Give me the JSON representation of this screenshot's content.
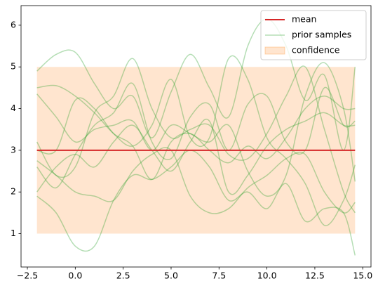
{
  "chart_data": {
    "type": "line",
    "xlim": [
      -2.83,
      15.43
    ],
    "ylim": [
      0.2,
      6.47
    ],
    "xticks": [
      {
        "value": -2.5,
        "label": "−2.5"
      },
      {
        "value": 0,
        "label": "0.0"
      },
      {
        "value": 2.5,
        "label": "2.5"
      },
      {
        "value": 5,
        "label": "5.0"
      },
      {
        "value": 7.5,
        "label": "7.5"
      },
      {
        "value": 10,
        "label": "10.0"
      },
      {
        "value": 12.5,
        "label": "12.5"
      },
      {
        "value": 15,
        "label": "15.0"
      }
    ],
    "yticks": [
      1,
      2,
      3,
      4,
      5,
      6
    ],
    "legend": "upper right",
    "band": {
      "name": "confidence",
      "color": "#ff7f0e",
      "x": [
        -2,
        14.6
      ],
      "lower": [
        1,
        1
      ],
      "upper": [
        5,
        5
      ]
    },
    "samples": {
      "name": "prior samples",
      "color": "#2ca02c",
      "x": [
        -2,
        -1,
        0,
        1,
        2,
        3,
        4,
        5,
        6,
        7,
        8,
        9,
        10,
        11,
        12,
        13,
        14,
        14.6
      ],
      "series": [
        [
          4.9,
          5.3,
          5.35,
          4.6,
          4.0,
          4.3,
          3.3,
          4.4,
          5.3,
          4.5,
          3.8,
          5.5,
          6.15,
          5.5,
          4.2,
          4.8,
          3.0,
          5.0
        ],
        [
          1.9,
          1.5,
          0.7,
          0.7,
          1.8,
          2.4,
          2.3,
          2.6,
          3.0,
          2.6,
          1.8,
          2.0,
          1.6,
          2.2,
          1.3,
          1.6,
          1.5,
          0.48
        ],
        [
          4.5,
          4.55,
          4.3,
          3.9,
          3.4,
          3.1,
          2.3,
          3.2,
          3.4,
          3.0,
          2.7,
          3.1,
          2.8,
          3.3,
          4.0,
          4.3,
          4.0,
          4.0
        ],
        [
          3.2,
          2.4,
          2.6,
          3.9,
          4.3,
          5.2,
          4.0,
          3.3,
          3.5,
          3.6,
          2.9,
          2.8,
          3.4,
          4.3,
          5.0,
          3.5,
          2.0,
          1.5
        ],
        [
          2.6,
          2.1,
          2.9,
          3.6,
          3.9,
          4.6,
          3.2,
          2.8,
          3.8,
          4.1,
          3.0,
          4.1,
          4.3,
          3.2,
          3.0,
          4.5,
          3.6,
          3.7
        ],
        [
          2.75,
          2.4,
          2.0,
          1.9,
          1.8,
          2.5,
          2.9,
          3.0,
          1.9,
          1.5,
          1.6,
          2.1,
          2.4,
          2.8,
          2.9,
          2.0,
          1.5,
          1.75
        ],
        [
          4.35,
          3.8,
          3.2,
          3.5,
          3.6,
          3.7,
          3.0,
          3.6,
          3.4,
          3.2,
          3.6,
          2.5,
          1.9,
          2.4,
          4.3,
          5.1,
          4.0,
          2.25
        ],
        [
          3.0,
          3.0,
          4.2,
          4.0,
          3.4,
          3.1,
          3.6,
          4.7,
          3.3,
          3.3,
          5.2,
          4.7,
          3.3,
          2.8,
          2.2,
          1.2,
          1.8,
          2.65
        ],
        [
          2.0,
          2.6,
          2.9,
          2.6,
          3.2,
          3.6,
          3.0,
          2.5,
          3.2,
          3.7,
          2.0,
          2.4,
          3.1,
          3.5,
          3.7,
          3.9,
          3.6,
          3.6
        ]
      ]
    },
    "mean": {
      "name": "mean",
      "color": "#d62728",
      "x": [
        -2,
        14.6
      ],
      "values": [
        3,
        3
      ]
    }
  }
}
